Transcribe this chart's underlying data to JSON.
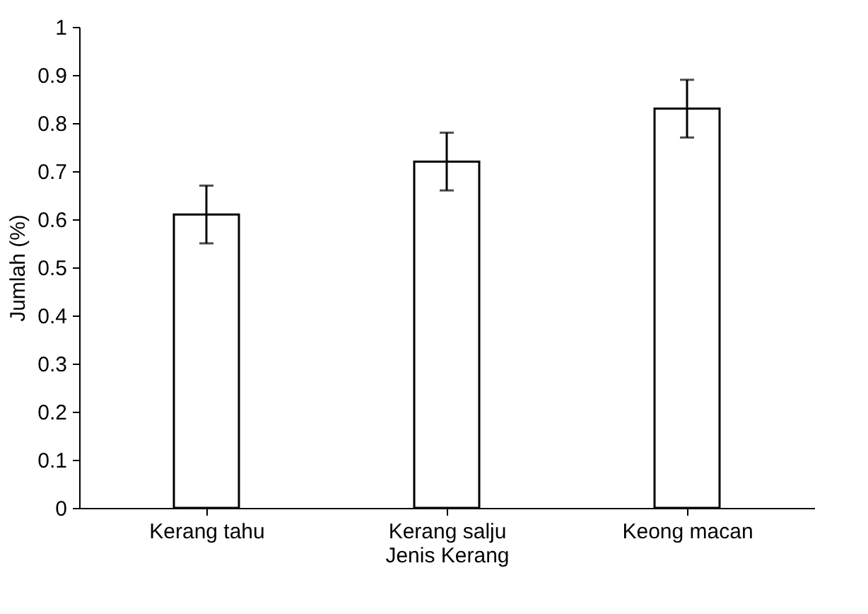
{
  "chart_data": {
    "type": "bar",
    "xlabel": "Jenis Kerang",
    "ylabel": "Jumlah (%)",
    "categories": [
      "Kerang tahu",
      "Kerang salju",
      "Keong macan"
    ],
    "values": [
      0.61,
      0.72,
      0.83
    ],
    "errors": [
      0.06,
      0.06,
      0.06
    ],
    "color": "#ffffff",
    "ylim": [
      0,
      1
    ],
    "yticks": [
      0,
      0.1,
      0.2,
      0.3,
      0.4,
      0.5,
      0.6,
      0.7,
      0.8,
      0.9,
      1
    ],
    "grid": false
  }
}
